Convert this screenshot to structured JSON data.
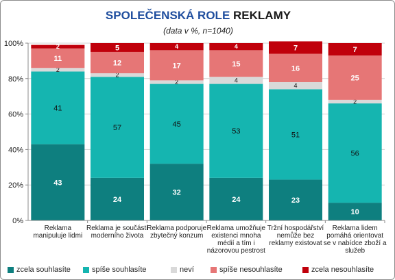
{
  "chart_data": {
    "type": "bar",
    "stacked": true,
    "percent": true,
    "title_part1": "SPOLEČENSKÁ ROLE",
    "title_part2": "REKLAMY",
    "subtitle": "(data v %, n=1040)",
    "ylim": [
      0,
      100
    ],
    "y_ticks": [
      "0%",
      "20%",
      "40%",
      "60%",
      "80%",
      "100%"
    ],
    "grid": true,
    "legend_position": "bottom",
    "categories": [
      [
        "Reklama",
        "manipuluje lidmi"
      ],
      [
        "Reklama je součástí",
        "moderního života"
      ],
      [
        "Reklama podporuje",
        "zbytečný konzum"
      ],
      [
        "Reklama umožňuje",
        "existenci mnoha",
        "médií a tím i",
        "názorovou pestrost"
      ],
      [
        "Tržní hospodářství",
        "nemůže bez",
        "reklamy existovat"
      ],
      [
        "Reklama lidem",
        "pomáhá orientovat",
        "se v nabídce zboží a",
        "služeb"
      ]
    ],
    "series": [
      {
        "name": "zcela souhlasíte",
        "color": "#0e7f7f",
        "label_color": "#ffffff",
        "values": [
          43,
          24,
          32,
          24,
          23,
          10
        ]
      },
      {
        "name": "spíše souhlasíte",
        "color": "#15b5b0",
        "label_color": "#111111",
        "values": [
          41,
          57,
          45,
          53,
          51,
          56
        ]
      },
      {
        "name": "neví",
        "color": "#d9d9d9",
        "label_color": "#111111",
        "values": [
          2,
          2,
          2,
          4,
          4,
          2
        ]
      },
      {
        "name": "spíše nesouhlasíte",
        "color": "#e67676",
        "label_color": "#ffffff",
        "values": [
          11,
          12,
          17,
          15,
          16,
          25
        ]
      },
      {
        "name": "zcela nesouhlasíte",
        "color": "#c0000b",
        "label_color": "#ffffff",
        "values": [
          2,
          5,
          4,
          4,
          7,
          7
        ]
      }
    ]
  }
}
